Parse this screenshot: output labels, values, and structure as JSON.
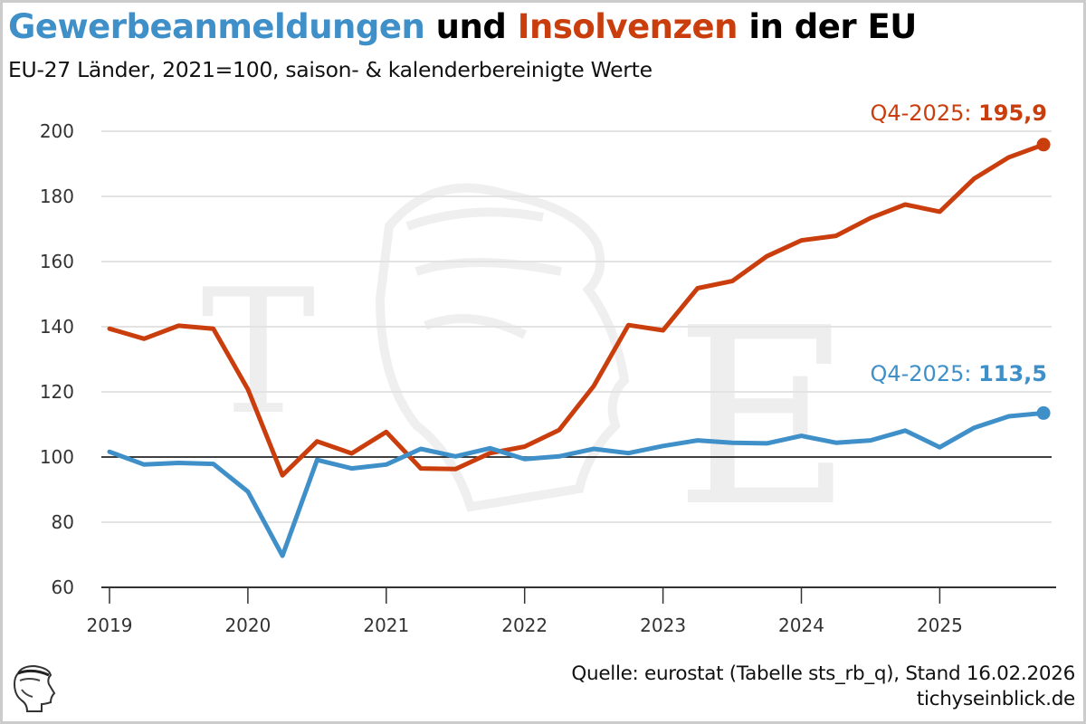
{
  "header": {
    "title_part1": "Gewerbeanmeldungen",
    "title_part2": " und ",
    "title_part3": "Insolvenzen",
    "title_part4": " in der EU",
    "subtitle": "EU-27 Länder, 2021=100, saison- & kalenderbereinigte Werte"
  },
  "footer": {
    "source": "Quelle: eurostat (Tabelle sts_rb_q), Stand 16.02.2026",
    "site": "tichyseinblick.de"
  },
  "watermark": {
    "letter_left": "T",
    "letter_right": "E"
  },
  "colors": {
    "registrations": "#3f8fc9",
    "insolvencies": "#c93e0c",
    "reference_line": "#000000",
    "grid": "#e3e3e3"
  },
  "chart_data": {
    "type": "line",
    "title": "Gewerbeanmeldungen und Insolvenzen in der EU",
    "subtitle": "EU-27 Länder, 2021=100, saison- & kalenderbereinigte Werte",
    "xlabel": "",
    "ylabel": "",
    "ylim": [
      60,
      200
    ],
    "yticks": [
      60,
      80,
      100,
      120,
      140,
      160,
      180,
      200
    ],
    "xtick_labels": [
      "2019",
      "2020",
      "2021",
      "2022",
      "2023",
      "2024",
      "2025"
    ],
    "reference_line": 100,
    "grid": true,
    "x": [
      "Q1-2019",
      "Q2-2019",
      "Q3-2019",
      "Q4-2019",
      "Q1-2020",
      "Q2-2020",
      "Q3-2020",
      "Q4-2020",
      "Q1-2021",
      "Q2-2021",
      "Q3-2021",
      "Q4-2021",
      "Q1-2022",
      "Q2-2022",
      "Q3-2022",
      "Q4-2022",
      "Q1-2023",
      "Q2-2023",
      "Q3-2023",
      "Q4-2023",
      "Q1-2024",
      "Q2-2024",
      "Q3-2024",
      "Q4-2024",
      "Q1-2025",
      "Q2-2025",
      "Q3-2025",
      "Q4-2025"
    ],
    "series": [
      {
        "name": "Insolvenzen",
        "color": "#c93e0c",
        "values": [
          139.4,
          136.3,
          140.3,
          139.4,
          120.8,
          94.4,
          104.8,
          101.1,
          107.7,
          96.5,
          96.3,
          101.2,
          103.2,
          108.3,
          121.8,
          140.5,
          138.9,
          151.8,
          154.0,
          161.6,
          166.5,
          167.9,
          173.4,
          177.5,
          175.3,
          185.5,
          192.0,
          195.9
        ],
        "end_label_prefix": "Q4-2025: ",
        "end_label_value": "195,9"
      },
      {
        "name": "Gewerbeanmeldungen",
        "color": "#3f8fc9",
        "values": [
          101.6,
          97.7,
          98.2,
          97.9,
          89.4,
          69.7,
          99.1,
          96.5,
          97.7,
          102.5,
          100.2,
          102.7,
          99.4,
          100.2,
          102.5,
          101.2,
          103.4,
          105.1,
          104.4,
          104.2,
          106.5,
          104.4,
          105.1,
          108.1,
          103.0,
          109.0,
          112.5,
          113.5
        ],
        "end_label_prefix": "Q4-2025: ",
        "end_label_value": "113,5"
      }
    ]
  }
}
